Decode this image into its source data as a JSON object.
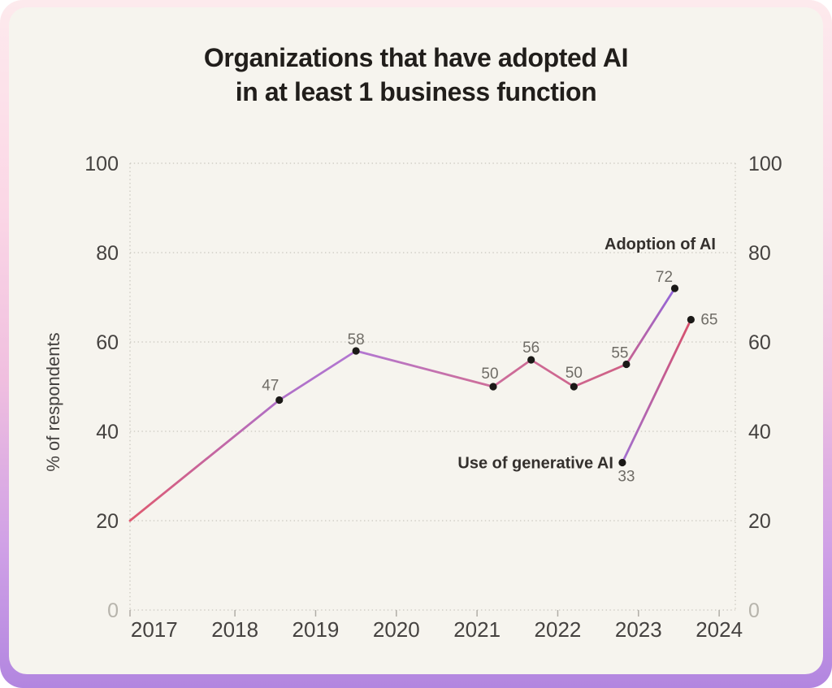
{
  "title": {
    "line1": "Organizations that have adopted AI",
    "line2": "in at least 1 business function"
  },
  "chart_data": {
    "type": "line",
    "title": "Organizations that have adopted AI in at least 1 business function",
    "xlabel": "",
    "ylabel": "% of respondents",
    "xlim": [
      2016.7,
      2024.2
    ],
    "ylim": [
      0,
      100
    ],
    "y_ticks": [
      0,
      20,
      40,
      60,
      80,
      100
    ],
    "y_tick_sides": "both",
    "muted_y_tick": 0,
    "x_ticks": [
      2017,
      2018,
      2019,
      2020,
      2021,
      2022,
      2023,
      2024
    ],
    "grid": "dotted-horizontal-plus-side-edges",
    "legend_position": "inline-labels-near-line-ends",
    "series": [
      {
        "name": "Adoption of AI",
        "points": [
          {
            "x": 2016.7,
            "y": 20,
            "dot": false,
            "labeled": false
          },
          {
            "x": 2018.55,
            "y": 47,
            "dot": true,
            "labeled": true
          },
          {
            "x": 2019.5,
            "y": 58,
            "dot": true,
            "labeled": true
          },
          {
            "x": 2021.2,
            "y": 50,
            "dot": true,
            "labeled": true
          },
          {
            "x": 2021.67,
            "y": 56,
            "dot": true,
            "labeled": true
          },
          {
            "x": 2022.2,
            "y": 50,
            "dot": true,
            "labeled": true
          },
          {
            "x": 2022.85,
            "y": 55,
            "dot": true,
            "labeled": true
          },
          {
            "x": 2023.45,
            "y": 72,
            "dot": true,
            "labeled": true
          }
        ],
        "gradient_direction": "x",
        "gradient_stops": [
          {
            "offset": 0,
            "color": "#df5a70"
          },
          {
            "offset": 0.27,
            "color": "#b06fc6"
          },
          {
            "offset": 0.42,
            "color": "#b277d2"
          },
          {
            "offset": 0.63,
            "color": "#cc6f9e"
          },
          {
            "offset": 0.9,
            "color": "#cf6186"
          },
          {
            "offset": 1,
            "color": "#9166dc"
          }
        ]
      },
      {
        "name": "Use of generative AI",
        "points": [
          {
            "x": 2022.8,
            "y": 33,
            "dot": true,
            "labeled": true
          },
          {
            "x": 2023.65,
            "y": 65,
            "dot": true,
            "labeled": true
          }
        ],
        "gradient_direction": "path",
        "gradient_stops": [
          {
            "offset": 0,
            "color": "#a16fd0"
          },
          {
            "offset": 1,
            "color": "#d9506a"
          }
        ]
      }
    ]
  },
  "colors": {
    "frame_gradient": [
      "#fdeaed",
      "#fbd7e6",
      "#f0bfdf",
      "#cfa0e6",
      "#b286e0"
    ],
    "card_background": "#f6f4ee",
    "grid": "#c9c6be",
    "tick_mark": "#b0ada6",
    "axis_text": "#454240",
    "muted_axis_text": "#b7b4ac",
    "data_label_text": "#6f6c66",
    "series_label_text": "#34302d",
    "title_text": "#211e1b",
    "dot": "#1b1917"
  }
}
